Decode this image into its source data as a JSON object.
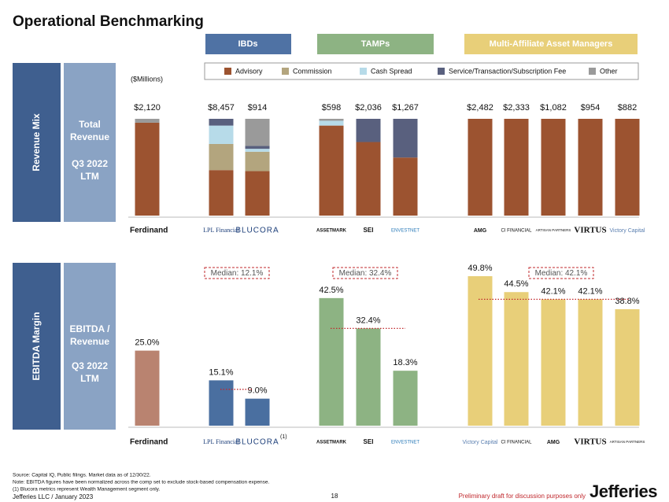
{
  "title": "Operational Benchmarking",
  "groups": [
    "IBDs",
    "TAMPs",
    "Multi-Affiliate Asset Managers"
  ],
  "panels": [
    {
      "name": "Revenue Mix",
      "label": "Total Revenue",
      "period": "Q3 2022 LTM"
    },
    {
      "name": "EBITDA Margin",
      "label": "EBITDA / Revenue",
      "period": "Q3 2022 LTM"
    }
  ],
  "chart_data": [
    {
      "type": "stacked_bar",
      "units": "($Millions)",
      "categories": [
        "Ferdinand",
        "LPL Financial",
        "BLUCORA",
        "ASSETMARK",
        "SEI",
        "ENVESTNET",
        "AMG",
        "CI FINANCIAL",
        "ARTISAN PARTNERS",
        "VIRTUS",
        "Victory Capital"
      ],
      "series": [
        {
          "name": "Advisory",
          "color": "#9c5330",
          "values": [
            96,
            47,
            46,
            93,
            76,
            60,
            100,
            100,
            100,
            100,
            100
          ]
        },
        {
          "name": "Commission",
          "color": "#b3a57e",
          "values": [
            0,
            27,
            20,
            0,
            0,
            0,
            0,
            0,
            0,
            0,
            0
          ]
        },
        {
          "name": "Cash Spread",
          "color": "#b7dbe9",
          "values": [
            0,
            19,
            3,
            5,
            0,
            0,
            0,
            0,
            0,
            0,
            0
          ]
        },
        {
          "name": "Service/Transaction/Subscription Fee",
          "color": "#59607e",
          "values": [
            0,
            7,
            3,
            0,
            24,
            40,
            0,
            0,
            0,
            0,
            0
          ]
        },
        {
          "name": "Other",
          "color": "#9a9a9a",
          "values": [
            4,
            0,
            28,
            2,
            0,
            0,
            0,
            0,
            0,
            0,
            0
          ]
        }
      ],
      "totals": {
        "values": [
          2120,
          8457,
          914,
          598,
          2036,
          1267,
          2482,
          2333,
          1082,
          954,
          882
        ],
        "value_labels": [
          "$2,120",
          "$8,457",
          "$914",
          "$598",
          "$2,036",
          "$1,267",
          "$2,482",
          "$2,333",
          "$1,082",
          "$954",
          "$882"
        ]
      }
    },
    {
      "type": "bar",
      "categories": [
        "Ferdinand",
        "LPL Financial",
        "BLUCORA",
        "ASSETMARK",
        "SEI",
        "ENVESTNET",
        "Victory Capital",
        "CI FINANCIAL",
        "AMG",
        "VIRTUS",
        "ARTISAN PARTNERS"
      ],
      "values": [
        25.0,
        15.1,
        9.0,
        42.5,
        32.4,
        18.3,
        49.8,
        44.5,
        42.1,
        42.1,
        38.8
      ],
      "value_labels": [
        "25.0%",
        "15.1%",
        "9.0%",
        "42.5%",
        "32.4%",
        "18.3%",
        "49.8%",
        "44.5%",
        "42.1%",
        "42.1%",
        "38.8%"
      ],
      "colors": [
        "#b98370",
        "#4a6fa0",
        "#4a6fa0",
        "#8db383",
        "#8db383",
        "#8db383",
        "#e8cf79",
        "#e8cf79",
        "#e8cf79",
        "#e8cf79",
        "#e8cf79"
      ],
      "medians": {
        "values": [
          12.1,
          32.4,
          42.1
        ],
        "value_labels": [
          "Median: 12.1%",
          "Median: 32.4%",
          "Median: 42.1%"
        ],
        "color": "#c0282d"
      },
      "blucora_marker": "(1)"
    }
  ],
  "footnotes": [
    "Source: Capital IQ, Public filings. Market data as of 12/30/22.",
    "Note: EBITDA figures have been normalized across the comp set to exclude stock-based compensation expense.",
    "(1)    Blucora metrics represent Wealth Management segment only."
  ],
  "footer": {
    "left": "Jefferies LLC / January 2023",
    "page": "18",
    "draft": "Preliminary draft for discussion purposes only",
    "brand": "Jefferies"
  }
}
